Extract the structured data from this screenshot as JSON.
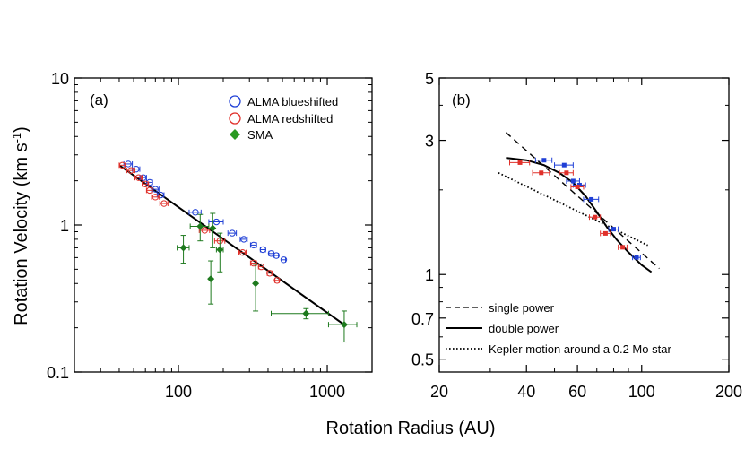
{
  "chart_data": [
    {
      "panel": "(a)",
      "type": "scatter",
      "xscale": "log",
      "yscale": "log",
      "xlim": [
        20,
        2000
      ],
      "ylim": [
        0.1,
        10
      ],
      "xticks": [
        100,
        1000
      ],
      "xtick_labels": [
        "100",
        "1000"
      ],
      "yticks": [
        0.1,
        1,
        10
      ],
      "ytick_labels": [
        "0.1",
        "1",
        "10"
      ],
      "legend": [
        "ALMA blueshifted",
        "ALMA redshifted",
        "SMA"
      ],
      "colors": {
        "blue": "#1f3fd6",
        "red": "#e0302a",
        "green": "#1e7a1e"
      },
      "series": [
        {
          "name": "ALMA blueshifted",
          "points": [
            {
              "x": 46,
              "y": 2.6,
              "xerr": 3
            },
            {
              "x": 52,
              "y": 2.4,
              "xerr": 3
            },
            {
              "x": 58,
              "y": 2.1,
              "xerr": 3
            },
            {
              "x": 64,
              "y": 1.95,
              "xerr": 3
            },
            {
              "x": 70,
              "y": 1.75,
              "xerr": 4
            },
            {
              "x": 76,
              "y": 1.6,
              "xerr": 4
            },
            {
              "x": 130,
              "y": 1.22,
              "xerr": 12
            },
            {
              "x": 180,
              "y": 1.05,
              "xerr": 20
            },
            {
              "x": 230,
              "y": 0.88,
              "xerr": 15
            },
            {
              "x": 275,
              "y": 0.8,
              "xerr": 15
            },
            {
              "x": 320,
              "y": 0.73,
              "xerr": 15
            },
            {
              "x": 370,
              "y": 0.68,
              "xerr": 15
            },
            {
              "x": 420,
              "y": 0.64,
              "xerr": 15
            },
            {
              "x": 455,
              "y": 0.62,
              "xerr": 15
            },
            {
              "x": 510,
              "y": 0.58,
              "xerr": 15
            }
          ]
        },
        {
          "name": "ALMA redshifted",
          "points": [
            {
              "x": 42,
              "y": 2.55,
              "xerr": 2
            },
            {
              "x": 48,
              "y": 2.35,
              "xerr": 3
            },
            {
              "x": 54,
              "y": 2.1,
              "xerr": 3
            },
            {
              "x": 60,
              "y": 1.9,
              "xerr": 3
            },
            {
              "x": 64,
              "y": 1.72,
              "xerr": 3
            },
            {
              "x": 70,
              "y": 1.55,
              "xerr": 4
            },
            {
              "x": 80,
              "y": 1.4,
              "xerr": 5
            },
            {
              "x": 150,
              "y": 0.92,
              "xerr": 12
            },
            {
              "x": 190,
              "y": 0.78,
              "xerr": 15
            },
            {
              "x": 270,
              "y": 0.65,
              "xerr": 15
            },
            {
              "x": 320,
              "y": 0.55,
              "xerr": 15
            },
            {
              "x": 360,
              "y": 0.52,
              "xerr": 15
            },
            {
              "x": 410,
              "y": 0.47,
              "xerr": 15
            },
            {
              "x": 460,
              "y": 0.42,
              "xerr": 15
            }
          ]
        },
        {
          "name": "SMA",
          "points": [
            {
              "x": 108,
              "y": 0.7,
              "xerr": 10,
              "yerr": 0.15
            },
            {
              "x": 140,
              "y": 0.98,
              "xerr": 20,
              "yerr": 0.2
            },
            {
              "x": 165,
              "y": 0.43,
              "xerr": 0,
              "yerr": 0.14
            },
            {
              "x": 170,
              "y": 0.95,
              "xerr": 0,
              "yerr": 0.25
            },
            {
              "x": 190,
              "y": 0.68,
              "xerr": 10,
              "yerr": 0.2
            },
            {
              "x": 330,
              "y": 0.4,
              "xerr": 0,
              "yerr": 0.14
            },
            {
              "x": 720,
              "y": 0.25,
              "xerr": 300,
              "yerr": 0.02
            },
            {
              "x": 1300,
              "y": 0.21,
              "xerr": 280,
              "yerr": 0.05
            }
          ]
        }
      ],
      "fit_lines": [
        {
          "name": "fit",
          "style": "solid",
          "points": [
            [
              40,
              2.55
            ],
            [
              1300,
              0.21
            ]
          ]
        }
      ]
    },
    {
      "panel": "(b)",
      "type": "scatter",
      "xscale": "log",
      "yscale": "log",
      "xlim": [
        20,
        200
      ],
      "ylim": [
        0.45,
        5
      ],
      "xticks": [
        20,
        40,
        60,
        100,
        200
      ],
      "xtick_labels": [
        "20",
        "40",
        "60",
        "100",
        "200"
      ],
      "yticks": [
        0.5,
        0.7,
        1,
        3,
        5
      ],
      "ytick_labels": [
        "0.5",
        "0.7",
        "1",
        "3",
        "5"
      ],
      "legend": [
        "single power",
        "double power",
        "Kepler motion around a 0.2 Mo star"
      ],
      "series": [
        {
          "name": "ALMA blueshifted",
          "points": [
            {
              "x": 46,
              "y": 2.55,
              "xerr": 3
            },
            {
              "x": 54,
              "y": 2.45,
              "xerr": 4
            },
            {
              "x": 58,
              "y": 2.15,
              "xerr": 3
            },
            {
              "x": 61,
              "y": 2.08,
              "xerr": 3
            },
            {
              "x": 67,
              "y": 1.85,
              "xerr": 4
            },
            {
              "x": 80,
              "y": 1.45,
              "xerr": 3
            },
            {
              "x": 96,
              "y": 1.15,
              "xerr": 3
            }
          ]
        },
        {
          "name": "ALMA redshifted",
          "points": [
            {
              "x": 38,
              "y": 2.5,
              "xerr": 3
            },
            {
              "x": 45,
              "y": 2.3,
              "xerr": 3
            },
            {
              "x": 55,
              "y": 2.3,
              "xerr": 3
            },
            {
              "x": 60,
              "y": 2.05,
              "xerr": 3
            },
            {
              "x": 69,
              "y": 1.6,
              "xerr": 3
            },
            {
              "x": 75,
              "y": 1.4,
              "xerr": 3
            },
            {
              "x": 86,
              "y": 1.25,
              "xerr": 3
            }
          ]
        }
      ],
      "fit_lines": [
        {
          "name": "single power",
          "style": "dashed",
          "points": [
            [
              34,
              3.2
            ],
            [
              115,
              1.05
            ]
          ]
        },
        {
          "name": "double power",
          "style": "solid",
          "points": [
            [
              34,
              2.6
            ],
            [
              40,
              2.55
            ],
            [
              46,
              2.45
            ],
            [
              52,
              2.3
            ],
            [
              58,
              2.12
            ],
            [
              64,
              1.9
            ],
            [
              70,
              1.67
            ],
            [
              76,
              1.47
            ],
            [
              82,
              1.33
            ],
            [
              90,
              1.2
            ],
            [
              100,
              1.08
            ],
            [
              108,
              1.02
            ]
          ]
        },
        {
          "name": "Kepler motion around a 0.2 Mo star",
          "style": "dotted",
          "points": [
            [
              32,
              2.3
            ],
            [
              105,
              1.27
            ]
          ]
        }
      ]
    }
  ],
  "shared": {
    "ylabel_prefix": "Rotation Velocity (km s",
    "ylabel_sup": "-1",
    "ylabel_suffix": ")",
    "xlabel": "Rotation  Radius (AU)"
  }
}
